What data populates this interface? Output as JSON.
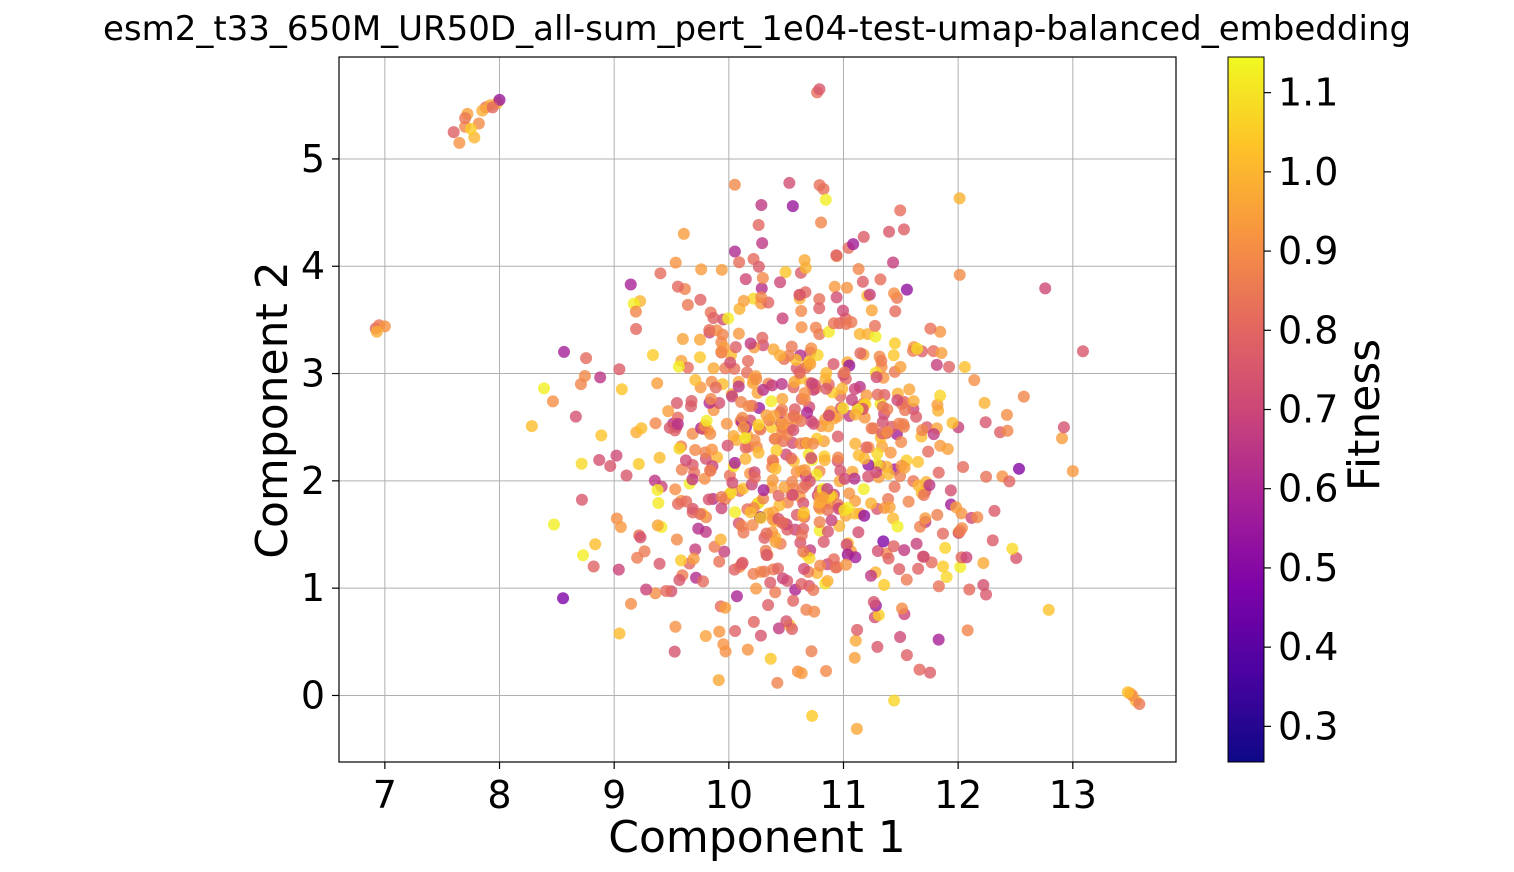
{
  "chart_data": {
    "type": "scatter",
    "title": "esm2_t33_650M_UR50D_all-sum_pert_1e04-test-umap-balanced_embedding",
    "xlabel": "Component 1",
    "ylabel": "Component 2",
    "xlim": [
      6.6,
      13.9
    ],
    "ylim": [
      -0.62,
      5.95
    ],
    "xticks": [
      7,
      8,
      9,
      10,
      11,
      12,
      13
    ],
    "yticks": [
      0,
      1,
      2,
      3,
      4,
      5
    ],
    "grid": true,
    "colorbar": {
      "label": "Fitness",
      "colormap": "plasma",
      "range": [
        0.255,
        1.145
      ],
      "ticks": [
        0.3,
        0.4,
        0.5,
        0.6,
        0.7,
        0.8,
        0.9,
        1.0,
        1.1
      ]
    },
    "clusters": [
      {
        "name": "top-left",
        "x": [
          7.6,
          7.7,
          7.72,
          7.78,
          7.82,
          7.88,
          7.92,
          7.98,
          8.0,
          7.65,
          7.7,
          7.75,
          7.85,
          7.94
        ],
        "y": [
          5.25,
          5.3,
          5.42,
          5.2,
          5.33,
          5.48,
          5.5,
          5.52,
          5.55,
          5.15,
          5.38,
          5.28,
          5.45,
          5.48
        ],
        "fitness": [
          0.78,
          0.88,
          0.95,
          1.0,
          0.9,
          0.82,
          0.97,
          1.02,
          0.55,
          0.92,
          0.85,
          1.05,
          0.98,
          0.8
        ]
      },
      {
        "name": "left",
        "x": [
          6.92,
          6.95,
          7.0,
          6.93
        ],
        "y": [
          3.42,
          3.45,
          3.44,
          3.39
        ],
        "fitness": [
          0.8,
          0.85,
          0.92,
          0.98
        ]
      },
      {
        "name": "top-mid",
        "x": [
          10.77,
          10.79
        ],
        "y": [
          5.62,
          5.65
        ],
        "fitness": [
          0.82,
          0.75
        ]
      },
      {
        "name": "right-bottom",
        "x": [
          13.5,
          13.55,
          13.52,
          13.58,
          13.48
        ],
        "y": [
          0.02,
          -0.05,
          0.0,
          -0.08,
          0.03
        ],
        "fitness": [
          0.95,
          1.0,
          0.9,
          0.85,
          1.02
        ]
      }
    ],
    "main_blob": {
      "x_center": 10.65,
      "y_center": 2.3,
      "x_spread": 1.55,
      "y_spread": 1.75,
      "x_range": [
        7.9,
        13.4
      ],
      "y_range": [
        -0.32,
        5.0
      ],
      "n_points": 760,
      "fitness_mean": 0.86,
      "fitness_sd": 0.14,
      "fitness_range": [
        0.28,
        1.12
      ]
    }
  }
}
